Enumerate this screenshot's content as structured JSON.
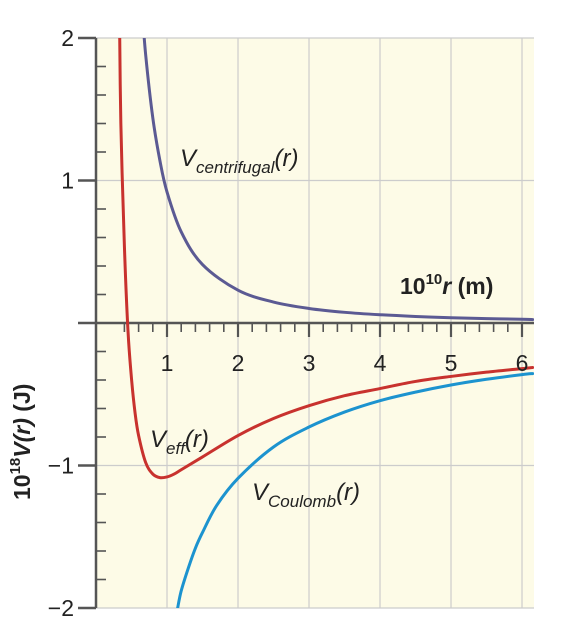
{
  "chart_data": {
    "type": "line",
    "title": "",
    "xlabel": {
      "prefix": "10",
      "exponent": "10",
      "var": "r",
      "unit": " (m)"
    },
    "ylabel": {
      "prefix": "10",
      "exponent": "18",
      "var": "V(r)",
      "unit": " (J)"
    },
    "xlim": [
      -1.0,
      6.15
    ],
    "ylim": [
      -2,
      2
    ],
    "x_ticks": [
      1,
      2,
      3,
      4,
      5,
      6
    ],
    "x_tick_labels": [
      "1",
      "2",
      "3",
      "4",
      "5",
      "6"
    ],
    "y_ticks": [
      -2,
      -1,
      1,
      2
    ],
    "y_tick_labels": [
      "−2",
      "−1",
      "1",
      "2"
    ],
    "grid": true,
    "background_color": "#fdfbe7",
    "grid_color": "#cccccc",
    "axis_color": "#555555",
    "series": [
      {
        "label_main": "V",
        "label_sub": "centrifugal",
        "label_arg": "(r)",
        "color": "#5b5a93",
        "x": [
          0.65,
          0.7,
          0.8,
          0.9,
          1.0,
          1.2,
          1.5,
          2.0,
          2.5,
          3.0,
          3.5,
          4.0,
          4.5,
          5.0,
          5.5,
          6.0,
          6.15
        ],
        "y": [
          2.2,
          1.88,
          1.44,
          1.14,
          0.92,
          0.64,
          0.41,
          0.23,
          0.147,
          0.102,
          0.075,
          0.058,
          0.046,
          0.037,
          0.031,
          0.026,
          0.024
        ]
      },
      {
        "label_main": "V",
        "label_sub": "eff",
        "label_arg": "(r)",
        "color": "#c8322e",
        "x": [
          0.33,
          0.35,
          0.4,
          0.45,
          0.5,
          0.55,
          0.6,
          0.7,
          0.8,
          0.9,
          1.0,
          1.1,
          1.2,
          1.5,
          2.0,
          2.5,
          3.0,
          3.5,
          4.0,
          4.5,
          5.0,
          5.5,
          6.0,
          6.15
        ],
        "y": [
          2.2,
          1.4,
          0.54,
          -0.05,
          -0.39,
          -0.63,
          -0.79,
          -0.98,
          -1.06,
          -1.085,
          -1.08,
          -1.06,
          -1.03,
          -0.94,
          -0.79,
          -0.67,
          -0.58,
          -0.51,
          -0.46,
          -0.41,
          -0.375,
          -0.345,
          -0.32,
          -0.312
        ]
      },
      {
        "label_main": "V",
        "label_sub": "Coulomb",
        "label_arg": "(r)",
        "color": "#1c93cf",
        "x": [
          1.15,
          1.2,
          1.3,
          1.4,
          1.5,
          1.7,
          2.0,
          2.5,
          3.0,
          3.5,
          4.0,
          4.5,
          5.0,
          5.5,
          6.0,
          6.15
        ],
        "y": [
          -2.0,
          -1.88,
          -1.72,
          -1.58,
          -1.47,
          -1.28,
          -1.09,
          -0.87,
          -0.73,
          -0.625,
          -0.545,
          -0.485,
          -0.435,
          -0.395,
          -0.362,
          -0.355
        ]
      }
    ]
  }
}
